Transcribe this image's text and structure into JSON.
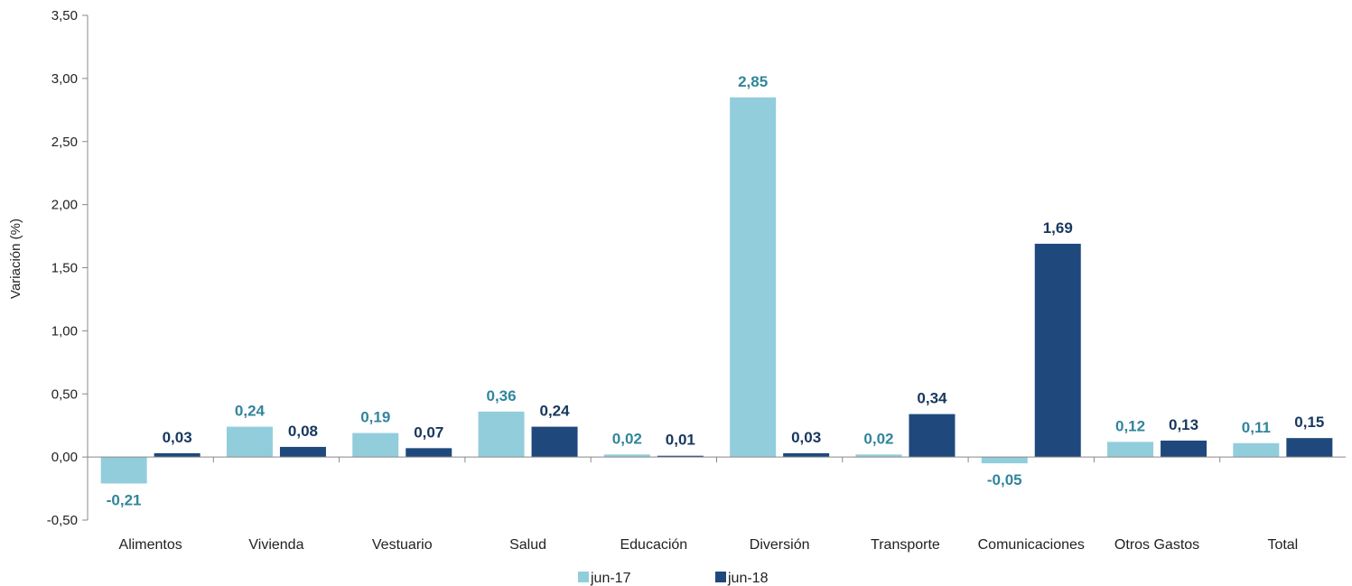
{
  "chart_data": {
    "type": "bar",
    "title": "",
    "xlabel": "",
    "ylabel": "Variación (%)",
    "ylim": [
      -0.5,
      3.5
    ],
    "yticks": [
      "-0,50",
      "0,00",
      "0,50",
      "1,00",
      "1,50",
      "2,00",
      "2,50",
      "3,00",
      "3,50"
    ],
    "ytick_values": [
      -0.5,
      0,
      0.5,
      1,
      1.5,
      2,
      2.5,
      3,
      3.5
    ],
    "categories": [
      "Alimentos",
      "Vivienda",
      "Vestuario",
      "Salud",
      "Educación",
      "Diversión",
      "Transporte",
      "Comunicaciones",
      "Otros Gastos",
      "Total"
    ],
    "series": [
      {
        "name": "jun-17",
        "color": "#92CDDC",
        "label_color": "#31859C",
        "values": [
          -0.21,
          0.24,
          0.19,
          0.36,
          0.02,
          2.85,
          0.02,
          -0.05,
          0.12,
          0.11
        ],
        "labels": [
          "-0,21",
          "0,24",
          "0,19",
          "0,36",
          "0,02",
          "2,85",
          "0,02",
          "-0,05",
          "0,12",
          "0,11"
        ]
      },
      {
        "name": "jun-18",
        "color": "#1F497D",
        "label_color": "#17375E",
        "values": [
          0.03,
          0.08,
          0.07,
          0.24,
          0.01,
          0.03,
          0.34,
          1.69,
          0.13,
          0.15
        ],
        "labels": [
          "0,03",
          "0,08",
          "0,07",
          "0,24",
          "0,01",
          "0,03",
          "0,34",
          "1,69",
          "0,13",
          "0,15"
        ]
      }
    ],
    "grid": false,
    "legend_position": "bottom"
  }
}
